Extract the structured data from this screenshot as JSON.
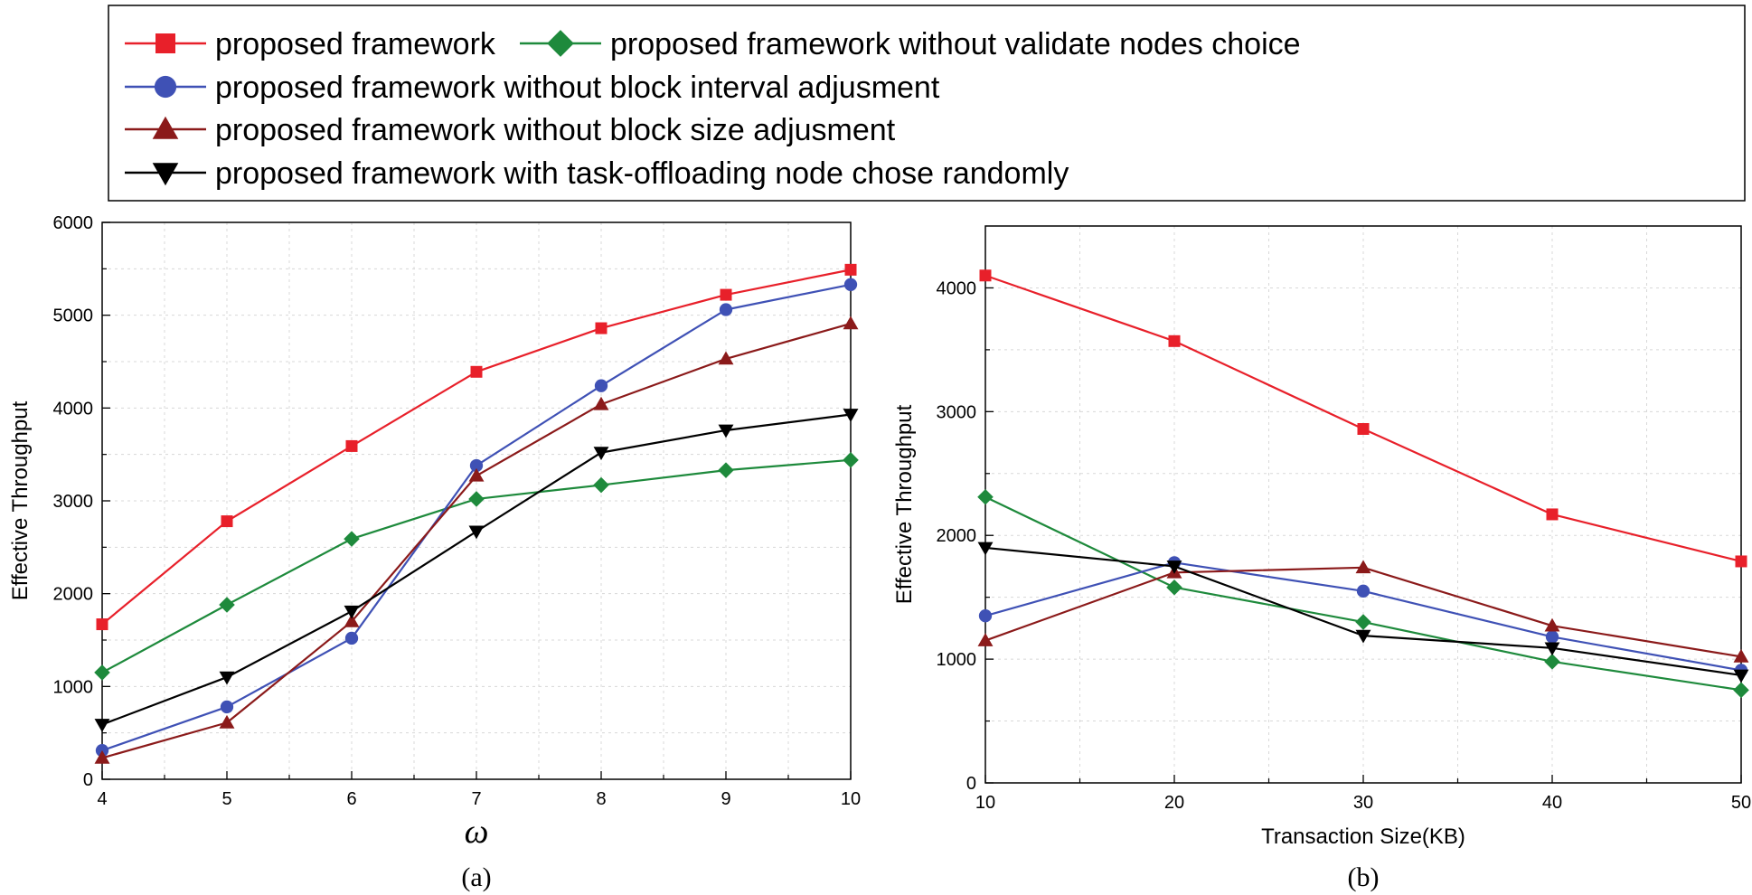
{
  "legend": {
    "entries": [
      {
        "label": "proposed framework",
        "color": "#e8202a",
        "marker": "square"
      },
      {
        "label": "proposed framework without validate nodes choice",
        "color": "#1e8a3c",
        "marker": "diamond"
      },
      {
        "label": "proposed framework without  block interval adjusment",
        "color": "#3f51b5",
        "marker": "circle"
      },
      {
        "label": "proposed framework without  block size adjusment",
        "color": "#8b1a1a",
        "marker": "triangle-up"
      },
      {
        "label": "proposed framework with task-offloading node chose  randomly",
        "color": "#000000",
        "marker": "triangle-down"
      }
    ]
  },
  "chart_data": [
    {
      "type": "line",
      "caption": "(a)",
      "xlabel": "ω",
      "ylabel": "Effective Throughput",
      "xlim": [
        4,
        10
      ],
      "ylim": [
        0,
        6000
      ],
      "xticks": [
        4,
        5,
        6,
        7,
        8,
        9,
        10
      ],
      "yticks": [
        0,
        1000,
        2000,
        3000,
        4000,
        5000,
        6000
      ],
      "x": [
        4,
        5,
        6,
        7,
        8,
        9,
        10
      ],
      "series": [
        {
          "name": "proposed framework",
          "values": [
            1670,
            2780,
            3590,
            4390,
            4860,
            5220,
            5490
          ]
        },
        {
          "name": "proposed framework without validate nodes choice",
          "values": [
            1150,
            1880,
            2590,
            3020,
            3170,
            3330,
            3440
          ]
        },
        {
          "name": "proposed framework without  block interval adjusment",
          "values": [
            310,
            780,
            1520,
            3380,
            4240,
            5060,
            5330
          ]
        },
        {
          "name": "proposed framework without  block size adjusment",
          "values": [
            230,
            610,
            1700,
            3270,
            4040,
            4530,
            4910
          ]
        },
        {
          "name": "proposed framework with task-offloading node chose  randomly",
          "values": [
            590,
            1100,
            1810,
            2670,
            3520,
            3760,
            3930
          ]
        }
      ]
    },
    {
      "type": "line",
      "caption": "(b)",
      "xlabel": "Transaction Size(KB)",
      "ylabel": "Effective Throughput",
      "xlim": [
        10,
        50
      ],
      "ylim": [
        0,
        4500
      ],
      "xticks": [
        10,
        20,
        30,
        40,
        50
      ],
      "yticks": [
        0,
        1000,
        2000,
        3000,
        4000
      ],
      "x": [
        10,
        20,
        30,
        40,
        50
      ],
      "series": [
        {
          "name": "proposed framework",
          "values": [
            4100,
            3570,
            2860,
            2170,
            1790
          ]
        },
        {
          "name": "proposed framework without validate nodes choice",
          "values": [
            2310,
            1580,
            1300,
            980,
            750
          ]
        },
        {
          "name": "proposed framework without  block interval adjusment",
          "values": [
            1350,
            1780,
            1550,
            1180,
            910
          ]
        },
        {
          "name": "proposed framework without  block size adjusment",
          "values": [
            1150,
            1700,
            1740,
            1270,
            1020
          ]
        },
        {
          "name": "proposed framework with task-offloading node chose  randomly",
          "values": [
            1900,
            1750,
            1190,
            1090,
            870
          ]
        }
      ]
    }
  ]
}
